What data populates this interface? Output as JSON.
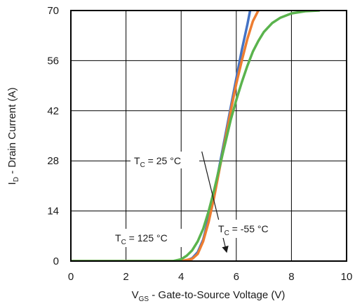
{
  "chart_data": {
    "type": "line",
    "xlabel": {
      "main": "V",
      "sub": "GS",
      "rest": " - Gate-to-Source Voltage (V)"
    },
    "ylabel": {
      "main": "I",
      "sub": "D",
      "rest": " - Drain Current (A)"
    },
    "xlim": [
      0,
      10
    ],
    "ylim": [
      0,
      70
    ],
    "xticks": [
      0,
      2,
      4,
      6,
      8,
      10
    ],
    "yticks": [
      0,
      14,
      28,
      42,
      56,
      70
    ],
    "grid": true,
    "series": [
      {
        "name": "TC = 125 °C",
        "color": "#4472c4",
        "x": [
          0,
          3.8,
          4.2,
          4.4,
          4.6,
          4.8,
          5.0,
          5.2,
          5.4,
          5.6,
          5.8,
          6.0,
          6.2,
          6.4,
          6.5
        ],
        "y": [
          0,
          0,
          0.2,
          0.8,
          2.5,
          6,
          12,
          19,
          27,
          35,
          43,
          51,
          59,
          66,
          70
        ]
      },
      {
        "name": "TC = 25 °C",
        "color": "#ed7d31",
        "x": [
          0,
          4.0,
          4.4,
          4.6,
          4.8,
          5.0,
          5.2,
          5.4,
          5.6,
          5.8,
          6.0,
          6.2,
          6.4,
          6.6,
          6.8
        ],
        "y": [
          0,
          0,
          0.6,
          2,
          5.5,
          11,
          18,
          26,
          34,
          42,
          49.5,
          56,
          62,
          67,
          70
        ]
      },
      {
        "name": "TC = -55 °C",
        "color": "#5ab34d",
        "x": [
          0,
          3.7,
          4.0,
          4.2,
          4.4,
          4.6,
          4.8,
          5.0,
          5.2,
          5.4,
          5.6,
          5.8,
          6.0,
          6.2,
          6.4,
          6.6,
          6.8,
          7.0,
          7.3,
          7.6,
          8.0,
          8.5,
          9.0
        ],
        "y": [
          0,
          0,
          0.5,
          1.5,
          3,
          5.5,
          9,
          14,
          20,
          26.5,
          33,
          39.5,
          45,
          50,
          54.5,
          58.5,
          61.5,
          64,
          66.5,
          68,
          69.2,
          69.8,
          70
        ]
      }
    ],
    "annotations": [
      {
        "main": "T",
        "sub": "C",
        "rest": " = 25 °C",
        "arrow": {
          "from": [
            4.75,
            30.6
          ],
          "to": [
            5.65,
            2.5
          ]
        }
      },
      {
        "main": "T",
        "sub": "C",
        "rest": " = 125 °C"
      },
      {
        "main": "T",
        "sub": "C",
        "rest": " = -55 °C"
      }
    ]
  }
}
